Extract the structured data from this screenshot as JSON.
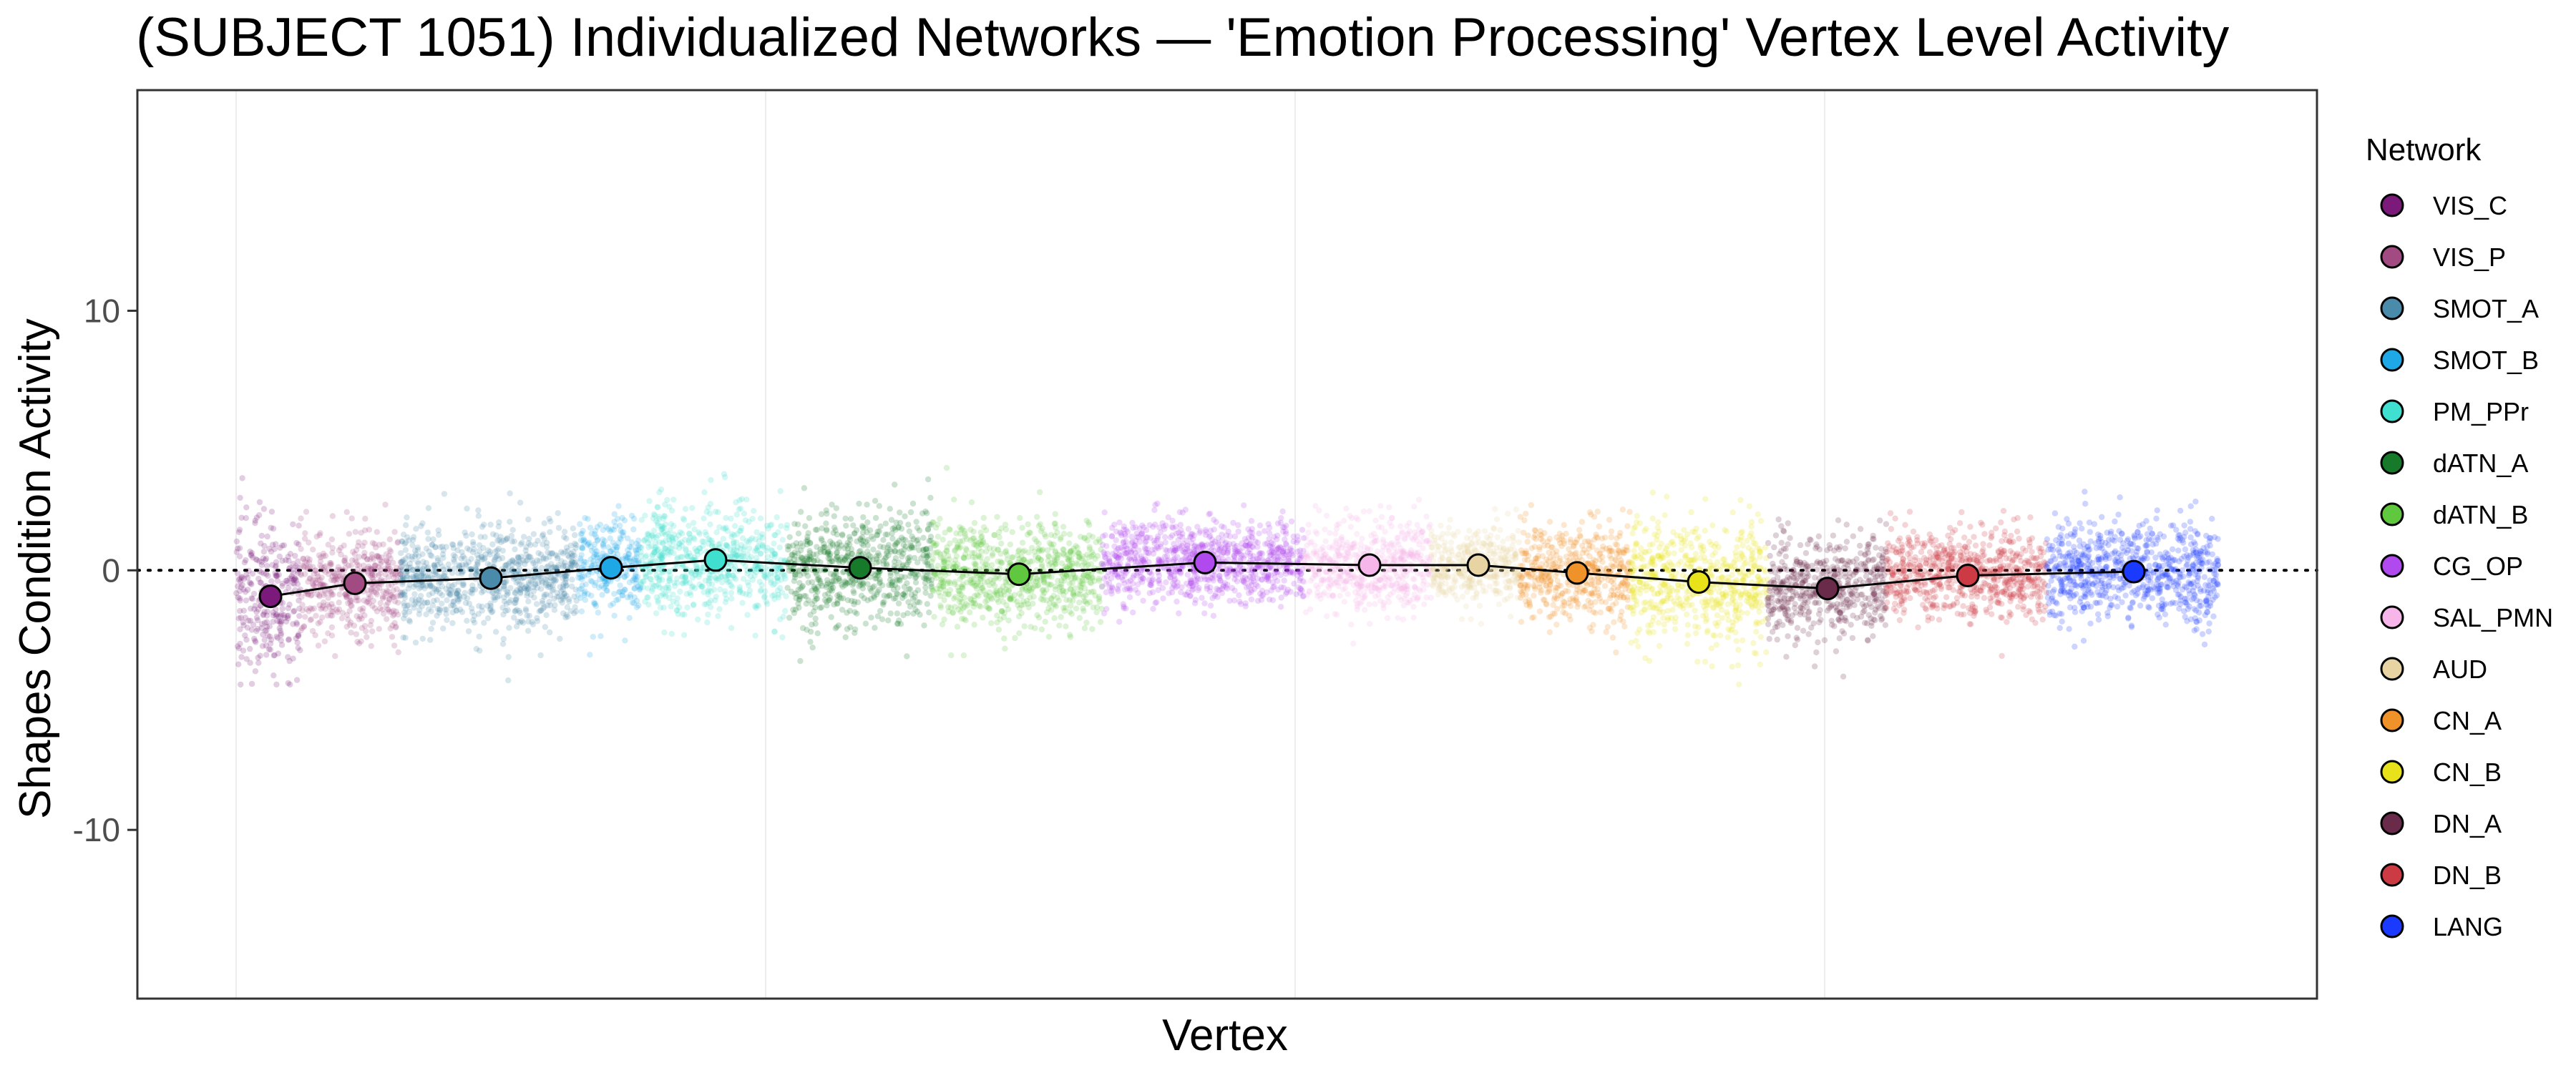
{
  "chart_data": {
    "type": "scatter",
    "title": "(SUBJECT 1051) Individualized Networks — 'Emotion Processing' Vertex Level Activity",
    "xlabel": "Vertex",
    "ylabel": "Shapes Condition Activity",
    "ylim": [
      -16.5,
      18.5
    ],
    "yticks": [
      -10,
      0,
      10
    ],
    "reference_line_y": 0,
    "grid": "vertical minor lines only",
    "legend": {
      "title": "Network",
      "position": "right"
    },
    "networks": [
      {
        "name": "VIS_C",
        "color": "#7b1a7b",
        "mean": -1.0
      },
      {
        "name": "VIS_P",
        "color": "#a24a82",
        "mean": -0.5
      },
      {
        "name": "SMOT_A",
        "color": "#4a8aaa",
        "mean": -0.3
      },
      {
        "name": "SMOT_B",
        "color": "#1fa8e6",
        "mean": 0.1
      },
      {
        "name": "PM_PPr",
        "color": "#3fe0cf",
        "mean": 0.4
      },
      {
        "name": "dATN_A",
        "color": "#177a2a",
        "mean": 0.1
      },
      {
        "name": "dATN_B",
        "color": "#5fc83e",
        "mean": -0.15
      },
      {
        "name": "CG_OP",
        "color": "#b04aee",
        "mean": 0.3
      },
      {
        "name": "SAL_PMN",
        "color": "#f6b6ea",
        "mean": 0.2
      },
      {
        "name": "AUD",
        "color": "#e8d4a2",
        "mean": 0.2
      },
      {
        "name": "CN_A",
        "color": "#f0922a",
        "mean": -0.1
      },
      {
        "name": "CN_B",
        "color": "#e8e21a",
        "mean": -0.45
      },
      {
        "name": "DN_A",
        "color": "#6a2a4a",
        "mean": -0.7
      },
      {
        "name": "DN_B",
        "color": "#cc3a44",
        "mean": -0.2
      },
      {
        "name": "LANG",
        "color": "#1a3aff",
        "mean": -0.05
      }
    ]
  }
}
